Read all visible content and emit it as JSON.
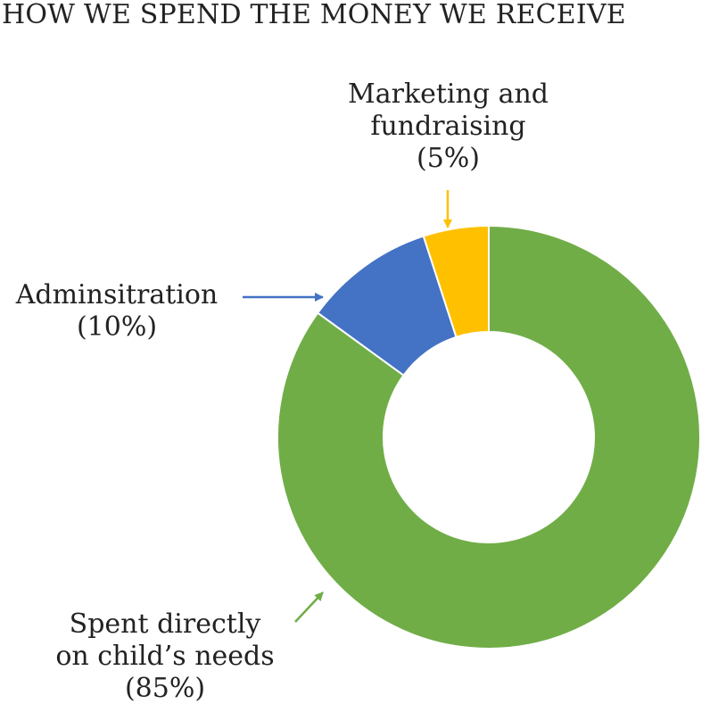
{
  "chart_data": {
    "type": "donut",
    "title": "HOW WE SPEND THE MONEY WE RECEIVE",
    "slices": [
      {
        "label": "Spent directly on child’s needs",
        "line1": "Spent directly",
        "line2": "on child’s needs",
        "pct_text": "(85%)",
        "value": 85,
        "color": "#70AD47"
      },
      {
        "label": "Adminsitration",
        "line1": "Adminsitration",
        "line2": "",
        "pct_text": "(10%)",
        "value": 10,
        "color": "#4472C4"
      },
      {
        "label": "Marketing and fundraising",
        "line1": "Marketing and",
        "line2": "fundraising",
        "pct_text": "(5%)",
        "value": 5,
        "color": "#FFC000"
      }
    ]
  }
}
